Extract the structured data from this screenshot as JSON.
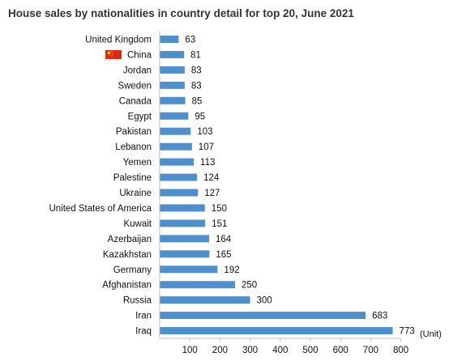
{
  "colors": {
    "bar": "#4f8fcc",
    "axis": "#bfbfbf",
    "flag_red": "#de2910",
    "flag_star": "#ffde00"
  },
  "chart_data": {
    "type": "bar",
    "orientation": "horizontal",
    "title": "House sales by nationalities in country detail for top 20, June 2021",
    "unit_label": "(Unit)",
    "categories": [
      "United Kingdom",
      "China",
      "Jordan",
      "Sweden",
      "Canada",
      "Egypt",
      "Pakistan",
      "Lebanon",
      "Yemen",
      "Palestine",
      "Ukraine",
      "United States of America",
      "Kuwait",
      "Azerbaijan",
      "Kazakhstan",
      "Germany",
      "Afghanistan",
      "Russia",
      "Iran",
      "Iraq"
    ],
    "values": [
      63,
      81,
      83,
      83,
      85,
      95,
      103,
      107,
      113,
      124,
      127,
      150,
      151,
      164,
      165,
      192,
      250,
      300,
      683,
      773
    ],
    "flag_icon_category": "China",
    "xlim": [
      0,
      800
    ],
    "xticks": [
      100,
      200,
      300,
      400,
      500,
      600,
      700,
      800
    ],
    "grid": false,
    "legend": "none"
  }
}
